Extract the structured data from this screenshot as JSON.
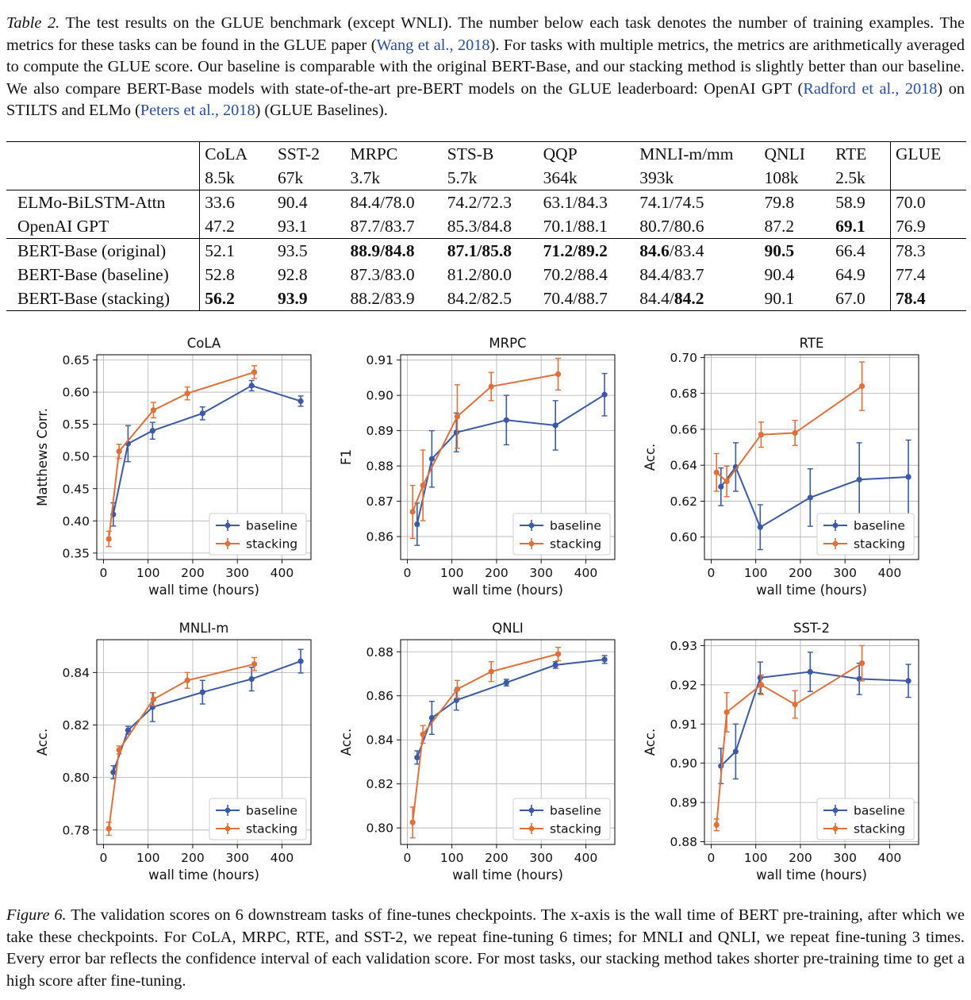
{
  "table_caption": {
    "lead": "Table 2.",
    "parts": [
      {
        "text": " The test results on the GLUE benchmark (except WNLI). The number below each task denotes the number of training examples. The metrics for these tasks can be found in the GLUE paper (",
        "cite": false
      },
      {
        "text": "Wang et al., 2018",
        "cite": true
      },
      {
        "text": "). For tasks with multiple metrics, the metrics are arithmetically averaged to compute the GLUE score. Our baseline is comparable with the original BERT-Base, and our stacking method is slightly better than our baseline. We also compare BERT-Base models with state-of-the-art pre-BERT models on the GLUE leaderboard: OpenAI GPT (",
        "cite": false
      },
      {
        "text": "Radford et al., 2018",
        "cite": true
      },
      {
        "text": ") on STILTS and ELMo (",
        "cite": false
      },
      {
        "text": "Peters et al., 2018",
        "cite": true
      },
      {
        "text": ") (GLUE Baselines).",
        "cite": false
      }
    ]
  },
  "table": {
    "columns": [
      "CoLA",
      "SST-2",
      "MRPC",
      "STS-B",
      "QQP",
      "MNLI-m/mm",
      "QNLI",
      "RTE",
      "GLUE"
    ],
    "sizes": [
      "8.5k",
      "67k",
      "3.7k",
      "5.7k",
      "364k",
      "393k",
      "108k",
      "2.5k",
      ""
    ],
    "rows": [
      {
        "model": "ELMo-BiLSTM-Attn",
        "cells": [
          [
            "33.6"
          ],
          [
            "90.4"
          ],
          [
            "84.4/78.0"
          ],
          [
            "74.2/72.3"
          ],
          [
            "63.1/84.3"
          ],
          [
            "74.1/74.5"
          ],
          [
            "79.8"
          ],
          [
            "58.9"
          ],
          [
            "70.0"
          ]
        ]
      },
      {
        "model": "OpenAI GPT",
        "cells": [
          [
            "47.2"
          ],
          [
            "93.1"
          ],
          [
            "87.7/83.7"
          ],
          [
            "85.3/84.8"
          ],
          [
            "70.1/88.1"
          ],
          [
            "80.7/80.6"
          ],
          [
            "87.2"
          ],
          [
            "**69.1"
          ],
          [
            "76.9"
          ]
        ]
      },
      {
        "model": "BERT-Base (original)",
        "cells": [
          [
            "52.1"
          ],
          [
            "93.5"
          ],
          [
            "**88.9/84.8"
          ],
          [
            "**87.1/85.8"
          ],
          [
            "**71.2/89.2"
          ],
          [
            "**84.6",
            "/83.4"
          ],
          [
            "**90.5"
          ],
          [
            "66.4"
          ],
          [
            "78.3"
          ]
        ]
      },
      {
        "model": "BERT-Base (baseline)",
        "cells": [
          [
            "52.8"
          ],
          [
            "92.8"
          ],
          [
            "87.3/83.0"
          ],
          [
            "81.2/80.0"
          ],
          [
            "70.2/88.4"
          ],
          [
            "84.4/83.7"
          ],
          [
            "90.4"
          ],
          [
            "64.9"
          ],
          [
            "77.4"
          ]
        ]
      },
      {
        "model": "BERT-Base (stacking)",
        "cells": [
          [
            "**56.2"
          ],
          [
            "**93.9"
          ],
          [
            "88.2/83.9"
          ],
          [
            "84.2/82.5"
          ],
          [
            "70.4/88.7"
          ],
          [
            "84.4/",
            "**84.2"
          ],
          [
            "90.1"
          ],
          [
            "67.0"
          ],
          [
            "**78.4"
          ]
        ]
      }
    ]
  },
  "colors": {
    "baseline": "#3a5aa6",
    "stacking": "#e0703a",
    "cite": "#2a4d9e"
  },
  "chart_data": [
    {
      "type": "line",
      "title": "CoLA",
      "xlabel": "wall time (hours)",
      "ylabel": "Matthews Corr.",
      "xlim": [
        -15,
        465
      ],
      "ylim": [
        0.34,
        0.658
      ],
      "xticks": [
        0,
        100,
        200,
        300,
        400
      ],
      "yticks": [
        0.35,
        0.4,
        0.45,
        0.5,
        0.55,
        0.6,
        0.65
      ],
      "ydecimals": 2,
      "grid": true,
      "legend": "lower-right",
      "series": [
        {
          "name": "baseline",
          "x": [
            22,
            55,
            110,
            222,
            332,
            442
          ],
          "y": [
            0.41,
            0.52,
            0.54,
            0.567,
            0.61,
            0.586
          ],
          "err": [
            0.018,
            0.028,
            0.013,
            0.01,
            0.008,
            0.008
          ]
        },
        {
          "name": "stacking",
          "x": [
            12,
            35,
            112,
            188,
            338
          ],
          "y": [
            0.372,
            0.508,
            0.572,
            0.598,
            0.631
          ],
          "err": [
            0.012,
            0.011,
            0.012,
            0.01,
            0.01
          ]
        }
      ]
    },
    {
      "type": "line",
      "title": "MRPC",
      "xlabel": "wall time (hours)",
      "ylabel": "F1",
      "xlim": [
        -15,
        465
      ],
      "ylim": [
        0.8535,
        0.9115
      ],
      "xticks": [
        0,
        100,
        200,
        300,
        400
      ],
      "yticks": [
        0.86,
        0.87,
        0.88,
        0.89,
        0.9,
        0.91
      ],
      "ydecimals": 2,
      "grid": true,
      "legend": "lower-right",
      "series": [
        {
          "name": "baseline",
          "x": [
            22,
            55,
            110,
            222,
            332,
            442
          ],
          "y": [
            0.8635,
            0.882,
            0.8895,
            0.893,
            0.8915,
            0.9002
          ],
          "err": [
            0.006,
            0.008,
            0.0055,
            0.007,
            0.007,
            0.006
          ]
        },
        {
          "name": "stacking",
          "x": [
            12,
            35,
            112,
            188,
            338
          ],
          "y": [
            0.867,
            0.8745,
            0.894,
            0.9025,
            0.906
          ],
          "err": [
            0.0075,
            0.01,
            0.009,
            0.004,
            0.0045
          ]
        }
      ]
    },
    {
      "type": "line",
      "title": "RTE",
      "xlabel": "wall time (hours)",
      "ylabel": "Acc.",
      "xlim": [
        -15,
        465
      ],
      "ylim": [
        0.5875,
        0.7015
      ],
      "xticks": [
        0,
        100,
        200,
        300,
        400
      ],
      "yticks": [
        0.6,
        0.62,
        0.64,
        0.66,
        0.68,
        0.7
      ],
      "ydecimals": 2,
      "grid": true,
      "legend": "lower-right",
      "series": [
        {
          "name": "baseline",
          "x": [
            22,
            55,
            110,
            222,
            332,
            442
          ],
          "y": [
            0.628,
            0.639,
            0.6055,
            0.622,
            0.632,
            0.6335
          ],
          "err": [
            0.0105,
            0.0135,
            0.0125,
            0.016,
            0.0205,
            0.0205
          ]
        },
        {
          "name": "stacking",
          "x": [
            12,
            35,
            112,
            188,
            338
          ],
          "y": [
            0.636,
            0.631,
            0.657,
            0.658,
            0.684
          ],
          "err": [
            0.0105,
            0.0085,
            0.007,
            0.007,
            0.0135
          ]
        }
      ]
    },
    {
      "type": "line",
      "title": "MNLI-m",
      "xlabel": "wall time (hours)",
      "ylabel": "Acc.",
      "xlim": [
        -15,
        465
      ],
      "ylim": [
        0.7745,
        0.8525
      ],
      "xticks": [
        0,
        100,
        200,
        300,
        400
      ],
      "yticks": [
        0.78,
        0.8,
        0.82,
        0.84
      ],
      "ydecimals": 2,
      "grid": true,
      "legend": "lower-right",
      "series": [
        {
          "name": "baseline",
          "x": [
            22,
            55,
            110,
            222,
            332,
            442
          ],
          "y": [
            0.802,
            0.818,
            0.8268,
            0.8325,
            0.8375,
            0.8443
          ],
          "err": [
            0.0025,
            0.0015,
            0.0055,
            0.0045,
            0.0045,
            0.0045
          ]
        },
        {
          "name": "stacking",
          "x": [
            12,
            35,
            112,
            188,
            338
          ],
          "y": [
            0.7805,
            0.8105,
            0.8298,
            0.837,
            0.8432
          ],
          "err": [
            0.0025,
            0.0015,
            0.0025,
            0.003,
            0.0025
          ]
        }
      ]
    },
    {
      "type": "line",
      "title": "QNLI",
      "xlabel": "wall time (hours)",
      "ylabel": "Acc.",
      "xlim": [
        -15,
        465
      ],
      "ylim": [
        0.7925,
        0.8855
      ],
      "xticks": [
        0,
        100,
        200,
        300,
        400
      ],
      "yticks": [
        0.8,
        0.82,
        0.84,
        0.86,
        0.88
      ],
      "ydecimals": 2,
      "grid": true,
      "legend": "lower-right",
      "series": [
        {
          "name": "baseline",
          "x": [
            22,
            55,
            110,
            222,
            332,
            442
          ],
          "y": [
            0.832,
            0.85,
            0.858,
            0.866,
            0.874,
            0.8765
          ],
          "err": [
            0.003,
            0.0075,
            0.0045,
            0.0015,
            0.0015,
            0.0018
          ]
        },
        {
          "name": "stacking",
          "x": [
            12,
            35,
            112,
            188,
            338
          ],
          "y": [
            0.8025,
            0.8425,
            0.863,
            0.871,
            0.879
          ],
          "err": [
            0.007,
            0.004,
            0.004,
            0.0045,
            0.003
          ]
        }
      ]
    },
    {
      "type": "line",
      "title": "SST-2",
      "xlabel": "wall time (hours)",
      "ylabel": "Acc.",
      "xlim": [
        -15,
        465
      ],
      "ylim": [
        0.8793,
        0.9315
      ],
      "xticks": [
        0,
        100,
        200,
        300,
        400
      ],
      "yticks": [
        0.88,
        0.89,
        0.9,
        0.91,
        0.92,
        0.93
      ],
      "ydecimals": 2,
      "grid": true,
      "legend": "lower-right",
      "series": [
        {
          "name": "baseline",
          "x": [
            22,
            55,
            110,
            222,
            332,
            442
          ],
          "y": [
            0.8993,
            0.903,
            0.9218,
            0.9233,
            0.9215,
            0.921
          ],
          "err": [
            0.0045,
            0.007,
            0.004,
            0.005,
            0.004,
            0.0042
          ]
        },
        {
          "name": "stacking",
          "x": [
            12,
            35,
            112,
            188,
            338
          ],
          "y": [
            0.8843,
            0.913,
            0.92,
            0.915,
            0.9255
          ],
          "err": [
            0.0015,
            0.005,
            0.0025,
            0.0035,
            0.0045
          ]
        }
      ]
    }
  ],
  "figure_caption": {
    "lead": "Figure 6.",
    "text": " The validation scores on 6 downstream tasks of fine-tunes checkpoints. The x-axis is the wall time of BERT pre-training, after which we take these checkpoints. For CoLA, MRPC, RTE, and SST-2, we repeat fine-tuning 6 times; for MNLI and QNLI, we repeat fine-tuning 3 times. Every error bar reflects the confidence interval of each validation score. For most tasks, our stacking method takes shorter pre-training time to get a high score after fine-tuning."
  }
}
